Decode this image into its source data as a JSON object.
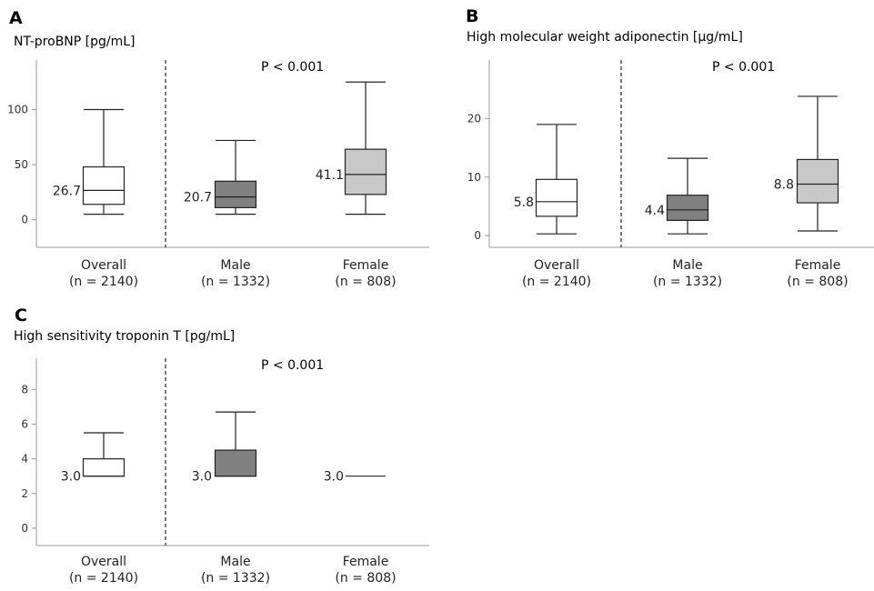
{
  "panels": [
    {
      "letter": "A",
      "title": "NT-proBNP [pg/mL]",
      "pvalue": "P < 0.001",
      "chart_data": {
        "type": "box",
        "ylim": [
          -25,
          145
        ],
        "yticks": [
          0,
          50,
          100
        ],
        "categories": [
          {
            "name": "Overall",
            "n": "(n = 2140)",
            "fill": "#ffffff",
            "whisker_low": 5,
            "q1": 14,
            "median": 26.7,
            "q3": 48,
            "whisker_high": 100,
            "label": "26.7"
          },
          {
            "name": "Male",
            "n": "(n = 1332)",
            "fill": "#808080",
            "whisker_low": 5,
            "q1": 11,
            "median": 20.7,
            "q3": 35,
            "whisker_high": 72,
            "label": "20.7"
          },
          {
            "name": "Female",
            "n": "(n = 808)",
            "fill": "#c8c8c8",
            "whisker_low": 5,
            "q1": 23,
            "median": 41.1,
            "q3": 64,
            "whisker_high": 125,
            "label": "41.1"
          }
        ]
      }
    },
    {
      "letter": "B",
      "title": "High molecular weight adiponectin [μg/mL]",
      "pvalue": "P < 0.001",
      "chart_data": {
        "type": "box",
        "ylim": [
          -2,
          30
        ],
        "yticks": [
          0,
          10,
          20
        ],
        "categories": [
          {
            "name": "Overall",
            "n": "(n = 2140)",
            "fill": "#ffffff",
            "whisker_low": 0.3,
            "q1": 3.3,
            "median": 5.8,
            "q3": 9.6,
            "whisker_high": 19,
            "label": "5.8"
          },
          {
            "name": "Male",
            "n": "(n = 1332)",
            "fill": "#808080",
            "whisker_low": 0.3,
            "q1": 2.6,
            "median": 4.4,
            "q3": 6.9,
            "whisker_high": 13.2,
            "label": "4.4"
          },
          {
            "name": "Female",
            "n": "(n = 808)",
            "fill": "#c8c8c8",
            "whisker_low": 0.8,
            "q1": 5.6,
            "median": 8.8,
            "q3": 13,
            "whisker_high": 23.8,
            "label": "8.8"
          }
        ]
      }
    },
    {
      "letter": "C",
      "title": "High sensitivity troponin T [pg/mL]",
      "pvalue": "P < 0.001",
      "chart_data": {
        "type": "box",
        "ylim": [
          -1,
          9.8
        ],
        "yticks": [
          0,
          2,
          4,
          6,
          8
        ],
        "categories": [
          {
            "name": "Overall",
            "n": "(n = 2140)",
            "fill": "#ffffff",
            "whisker_low": 3,
            "q1": 3,
            "median": 3.0,
            "q3": 4,
            "whisker_high": 5.5,
            "label": "3.0"
          },
          {
            "name": "Male",
            "n": "(n = 1332)",
            "fill": "#808080",
            "whisker_low": 3,
            "q1": 3,
            "median": 3.0,
            "q3": 4.5,
            "whisker_high": 6.7,
            "label": "3.0"
          },
          {
            "name": "Female",
            "n": "(n = 808)",
            "fill": "#c8c8c8",
            "whisker_low": 3,
            "q1": 3,
            "median": 3.0,
            "q3": 3,
            "whisker_high": 3,
            "label": "3.0"
          }
        ]
      }
    }
  ]
}
